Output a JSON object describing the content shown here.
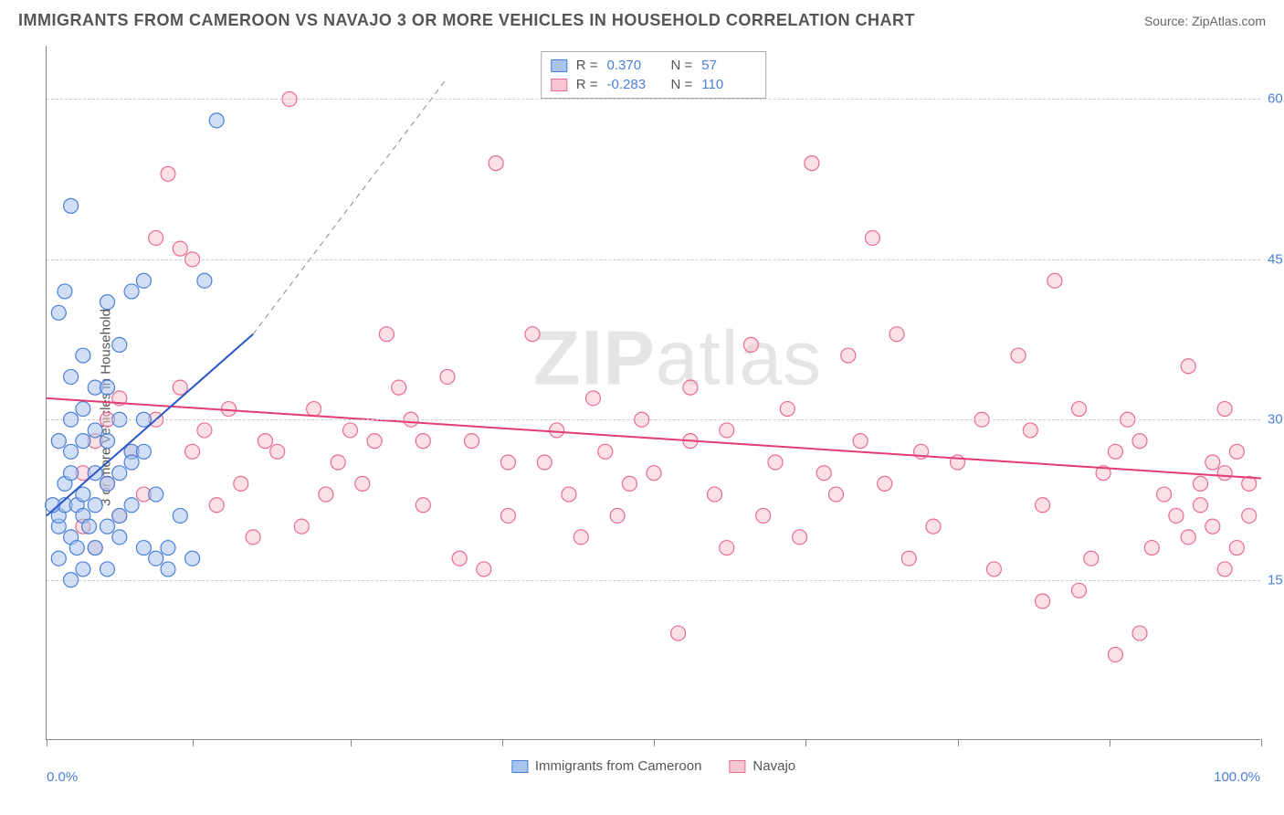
{
  "title": "IMMIGRANTS FROM CAMEROON VS NAVAJO 3 OR MORE VEHICLES IN HOUSEHOLD CORRELATION CHART",
  "source": "Source: ZipAtlas.com",
  "yaxis_label": "3 or more Vehicles in Household",
  "watermark_a": "ZIP",
  "watermark_b": "atlas",
  "chart": {
    "type": "scatter",
    "background_color": "#ffffff",
    "grid_color": "#cccccc",
    "axis_color": "#888888",
    "xlim": [
      0,
      100
    ],
    "ylim": [
      0,
      65
    ],
    "yticks": [
      15,
      30,
      45,
      60
    ],
    "ytick_labels": [
      "15.0%",
      "30.0%",
      "45.0%",
      "60.0%"
    ],
    "xticks": [
      0,
      12,
      25,
      37.5,
      50,
      62.5,
      75,
      87.5,
      100
    ],
    "xtick_labels_left": "0.0%",
    "xtick_labels_right": "100.0%",
    "tick_label_color": "#4a7fd8",
    "tick_fontsize": 15,
    "marker_radius": 8,
    "marker_opacity": 0.55,
    "series": [
      {
        "name": "Immigrants from Cameroon",
        "color_fill": "#a9c4ec",
        "color_stroke": "#4a7fd8",
        "R": "0.370",
        "N": "57",
        "trend": {
          "x1": 0,
          "y1": 21,
          "x2": 17,
          "y2": 38,
          "extend_x2": 33,
          "extend_y2": 62,
          "color": "#2a57c8",
          "width": 2
        },
        "points": [
          [
            1,
            20
          ],
          [
            1,
            21
          ],
          [
            1.5,
            22
          ],
          [
            2,
            19
          ],
          [
            1.5,
            24
          ],
          [
            2,
            25
          ],
          [
            2.5,
            18
          ],
          [
            2.5,
            22
          ],
          [
            3,
            21
          ],
          [
            3,
            23
          ],
          [
            1,
            17
          ],
          [
            3.5,
            20
          ],
          [
            2,
            27
          ],
          [
            4,
            22
          ],
          [
            1,
            28
          ],
          [
            2,
            30
          ],
          [
            3,
            28
          ],
          [
            4,
            25
          ],
          [
            5,
            24
          ],
          [
            5,
            20
          ],
          [
            0.5,
            22
          ],
          [
            4,
            18
          ],
          [
            6,
            21
          ],
          [
            6,
            19
          ],
          [
            7,
            22
          ],
          [
            8,
            18
          ],
          [
            9,
            17
          ],
          [
            10,
            16
          ],
          [
            5,
            28
          ],
          [
            6,
            30
          ],
          [
            2,
            34
          ],
          [
            3,
            36
          ],
          [
            1,
            40
          ],
          [
            1.5,
            42
          ],
          [
            7,
            42
          ],
          [
            8,
            43
          ],
          [
            5,
            41
          ],
          [
            2,
            50
          ],
          [
            14,
            58
          ],
          [
            7,
            27
          ],
          [
            3,
            31
          ],
          [
            4,
            33
          ],
          [
            8,
            27
          ],
          [
            9,
            23
          ],
          [
            10,
            18
          ],
          [
            11,
            21
          ],
          [
            12,
            17
          ],
          [
            5,
            16
          ],
          [
            2,
            15
          ],
          [
            3,
            16
          ],
          [
            6,
            25
          ],
          [
            7,
            26
          ],
          [
            4,
            29
          ],
          [
            5,
            33
          ],
          [
            6,
            37
          ],
          [
            13,
            43
          ],
          [
            8,
            30
          ]
        ]
      },
      {
        "name": "Navajo",
        "color_fill": "#f7c6d2",
        "color_stroke": "#e86b92",
        "R": "-0.283",
        "N": "110",
        "trend": {
          "x1": 0,
          "y1": 32,
          "x2": 100,
          "y2": 24.5,
          "color": "#e33b74",
          "width": 2
        },
        "points": [
          [
            3,
            25
          ],
          [
            4,
            28
          ],
          [
            5,
            24
          ],
          [
            7,
            27
          ],
          [
            8,
            23
          ],
          [
            6,
            21
          ],
          [
            4,
            18
          ],
          [
            3,
            20
          ],
          [
            5,
            30
          ],
          [
            6,
            32
          ],
          [
            10,
            53
          ],
          [
            11,
            46
          ],
          [
            12,
            45
          ],
          [
            20,
            60
          ],
          [
            9,
            47
          ],
          [
            11,
            33
          ],
          [
            13,
            29
          ],
          [
            15,
            31
          ],
          [
            16,
            24
          ],
          [
            18,
            28
          ],
          [
            19,
            27
          ],
          [
            21,
            20
          ],
          [
            22,
            31
          ],
          [
            24,
            26
          ],
          [
            26,
            24
          ],
          [
            27,
            28
          ],
          [
            28,
            38
          ],
          [
            30,
            30
          ],
          [
            31,
            22
          ],
          [
            33,
            34
          ],
          [
            35,
            28
          ],
          [
            36,
            16
          ],
          [
            37,
            54
          ],
          [
            38,
            26
          ],
          [
            40,
            38
          ],
          [
            42,
            29
          ],
          [
            43,
            23
          ],
          [
            45,
            32
          ],
          [
            46,
            27
          ],
          [
            48,
            24
          ],
          [
            49,
            30
          ],
          [
            52,
            10
          ],
          [
            53,
            28
          ],
          [
            55,
            23
          ],
          [
            56,
            29
          ],
          [
            58,
            37
          ],
          [
            60,
            26
          ],
          [
            61,
            31
          ],
          [
            63,
            54
          ],
          [
            64,
            25
          ],
          [
            66,
            36
          ],
          [
            68,
            47
          ],
          [
            69,
            24
          ],
          [
            71,
            17
          ],
          [
            72,
            27
          ],
          [
            73,
            20
          ],
          [
            75,
            26
          ],
          [
            77,
            30
          ],
          [
            78,
            16
          ],
          [
            80,
            36
          ],
          [
            81,
            29
          ],
          [
            82,
            22
          ],
          [
            83,
            43
          ],
          [
            85,
            31
          ],
          [
            86,
            17
          ],
          [
            87,
            25
          ],
          [
            88,
            27
          ],
          [
            89,
            30
          ],
          [
            90,
            28
          ],
          [
            91,
            18
          ],
          [
            92,
            23
          ],
          [
            93,
            21
          ],
          [
            94,
            19
          ],
          [
            95,
            24
          ],
          [
            95,
            22
          ],
          [
            96,
            26
          ],
          [
            96,
            20
          ],
          [
            97,
            25
          ],
          [
            97,
            16
          ],
          [
            98,
            27
          ],
          [
            98,
            18
          ],
          [
            99,
            24
          ],
          [
            99,
            21
          ],
          [
            97,
            31
          ],
          [
            94,
            35
          ],
          [
            90,
            10
          ],
          [
            88,
            8
          ],
          [
            85,
            14
          ],
          [
            82,
            13
          ],
          [
            70,
            38
          ],
          [
            67,
            28
          ],
          [
            65,
            23
          ],
          [
            62,
            19
          ],
          [
            59,
            21
          ],
          [
            56,
            18
          ],
          [
            53,
            33
          ],
          [
            50,
            25
          ],
          [
            47,
            21
          ],
          [
            44,
            19
          ],
          [
            41,
            26
          ],
          [
            38,
            21
          ],
          [
            34,
            17
          ],
          [
            31,
            28
          ],
          [
            29,
            33
          ],
          [
            25,
            29
          ],
          [
            23,
            23
          ],
          [
            17,
            19
          ],
          [
            14,
            22
          ],
          [
            12,
            27
          ],
          [
            9,
            30
          ]
        ]
      }
    ]
  },
  "legend_bottom": [
    {
      "label": "Immigrants from Cameroon",
      "fill": "#a9c4ec",
      "stroke": "#4a7fd8"
    },
    {
      "label": "Navajo",
      "fill": "#f7c6d2",
      "stroke": "#e86b92"
    }
  ]
}
